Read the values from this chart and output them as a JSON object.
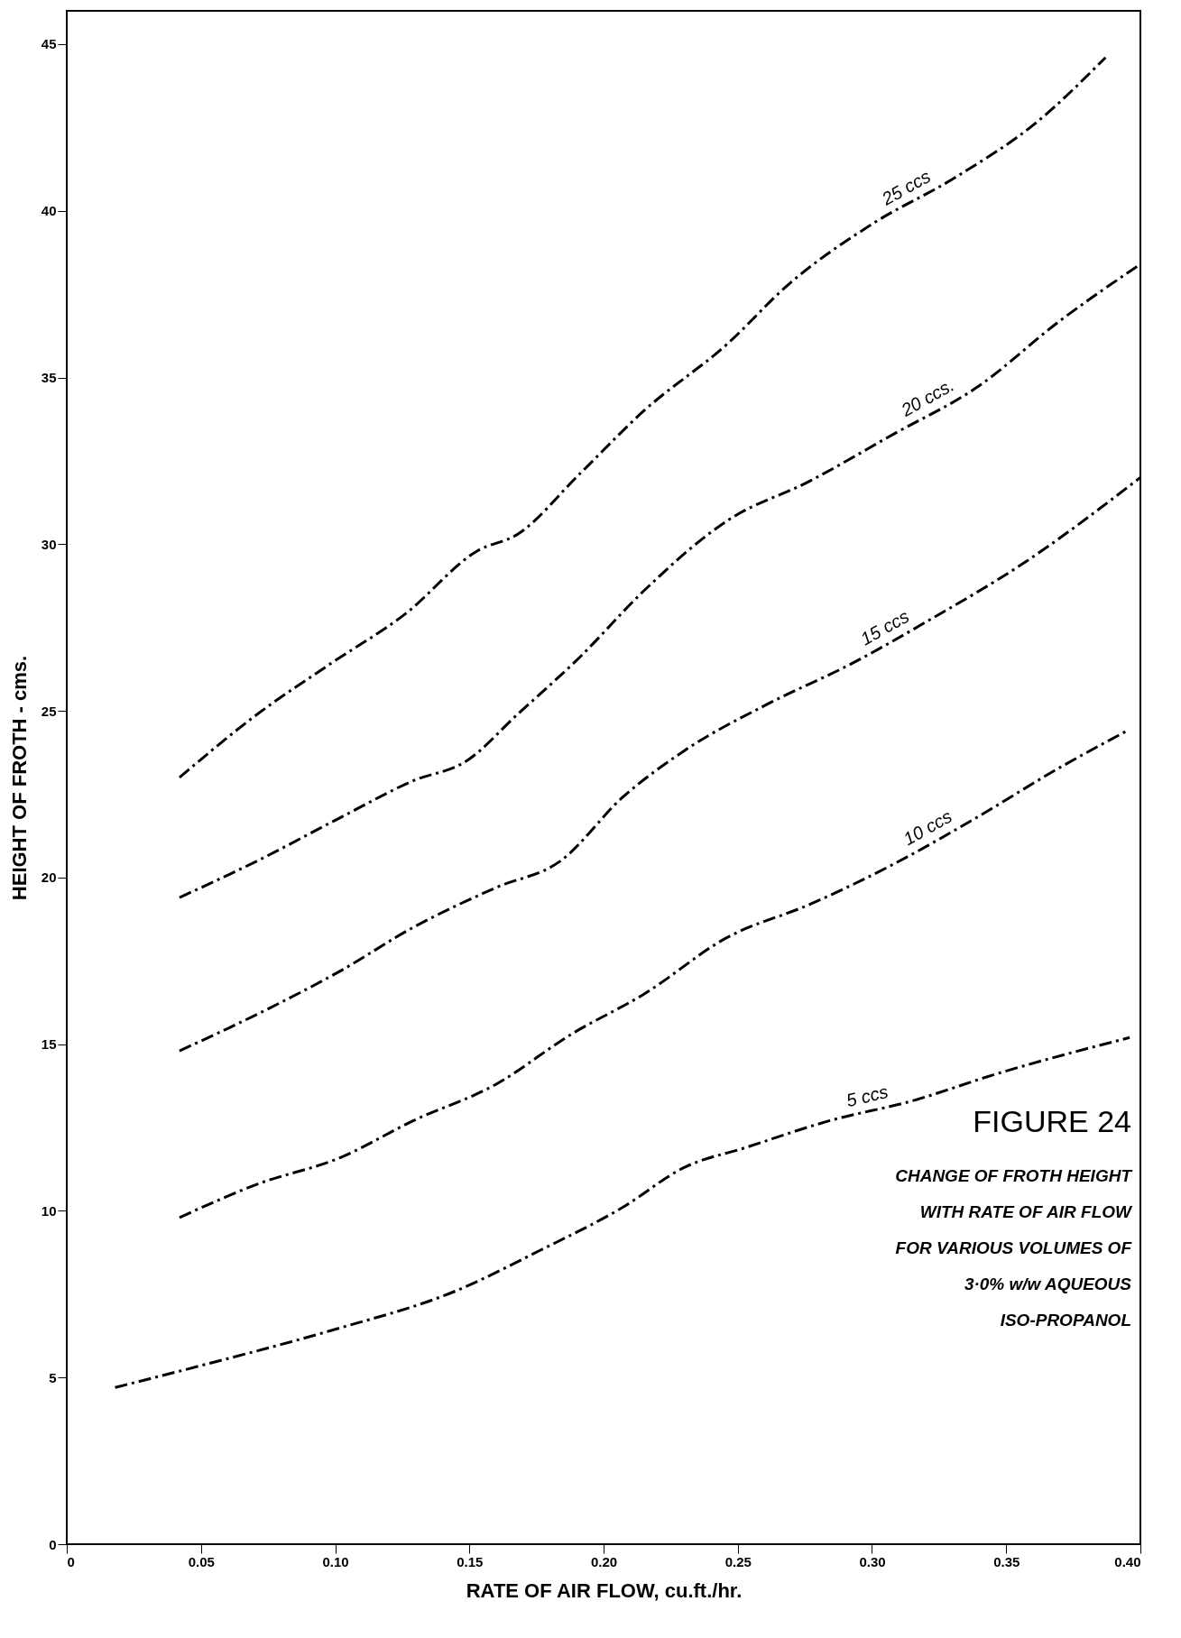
{
  "chart_data": {
    "type": "line",
    "title": "FIGURE 24",
    "subtitle": "CHANGE OF FROTH HEIGHT\nWITH RATE OF AIR FLOW\nFOR VARIOUS VOLUMES OF\n3·0% w/w AQUEOUS\nISO-PROPANOL",
    "xlabel": "RATE OF AIR FLOW, cu.ft./hr.",
    "ylabel": "HEIGHT OF FROTH - cms.",
    "xlim": [
      0,
      0.4
    ],
    "ylim": [
      0,
      46
    ],
    "xticks": [
      0,
      0.05,
      {
        "value": 0.1,
        "label": "0.10"
      },
      0.15,
      {
        "value": 0.2,
        "label": "0.20"
      },
      0.25,
      {
        "value": 0.3,
        "label": "0.30"
      },
      0.35,
      {
        "value": 0.4,
        "label": "0.40"
      }
    ],
    "yticks": [
      0,
      5,
      10,
      15,
      20,
      25,
      30,
      35,
      40,
      45
    ],
    "grid": false,
    "legend": false,
    "marker": "none",
    "line_style": "dashed",
    "series": [
      {
        "name": "25 ccs",
        "color": "#000000",
        "x": [
          0.042,
          0.071,
          0.098,
          0.126,
          0.153,
          0.168,
          0.191,
          0.215,
          0.246,
          0.269,
          0.3,
          0.331,
          0.362,
          0.387
        ],
        "values": [
          23.0,
          24.9,
          26.4,
          27.9,
          29.8,
          30.3,
          32.1,
          34.0,
          36.0,
          37.8,
          39.6,
          41.0,
          42.7,
          44.6
        ]
      },
      {
        "name": "20 ccs.",
        "color": "#000000",
        "x": [
          0.042,
          0.071,
          0.102,
          0.129,
          0.149,
          0.168,
          0.191,
          0.215,
          0.246,
          0.277,
          0.308,
          0.339,
          0.37,
          0.4
        ],
        "values": [
          19.4,
          20.5,
          21.8,
          22.9,
          23.5,
          24.9,
          26.6,
          28.6,
          30.7,
          31.9,
          33.3,
          34.7,
          36.7,
          38.4
        ]
      },
      {
        "name": "15 ccs",
        "color": "#000000",
        "x": [
          0.042,
          0.071,
          0.102,
          0.129,
          0.16,
          0.184,
          0.207,
          0.23,
          0.261,
          0.292,
          0.323,
          0.354,
          0.4
        ],
        "values": [
          14.8,
          15.9,
          17.2,
          18.5,
          19.7,
          20.5,
          22.4,
          23.8,
          25.2,
          26.4,
          27.8,
          29.3,
          32.0
        ]
      },
      {
        "name": "10 ccs",
        "color": "#000000",
        "x": [
          0.042,
          0.071,
          0.102,
          0.129,
          0.16,
          0.188,
          0.215,
          0.246,
          0.277,
          0.308,
          0.339,
          0.37,
          0.395
        ],
        "values": [
          9.8,
          10.8,
          11.6,
          12.7,
          13.8,
          15.3,
          16.5,
          18.2,
          19.2,
          20.4,
          21.8,
          23.3,
          24.4
        ]
      },
      {
        "name": "5 ccs",
        "color": "#000000",
        "x": [
          0.018,
          0.052,
          0.098,
          0.145,
          0.176,
          0.207,
          0.23,
          0.253,
          0.284,
          0.315,
          0.346,
          0.396
        ],
        "values": [
          4.7,
          5.4,
          6.4,
          7.6,
          8.8,
          10.1,
          11.3,
          11.9,
          12.7,
          13.3,
          14.1,
          15.2
        ]
      }
    ]
  }
}
